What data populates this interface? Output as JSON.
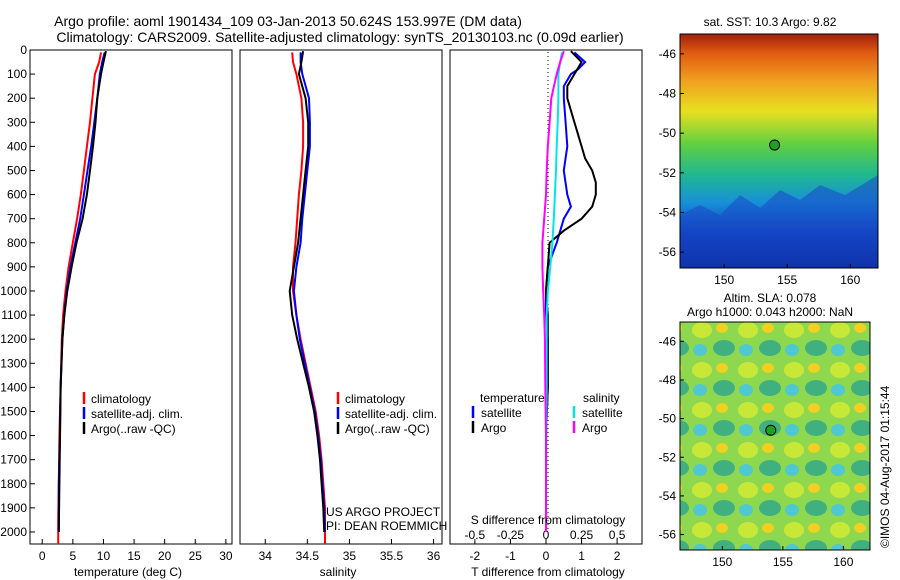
{
  "figure": {
    "title_line1": "Argo profile: aoml 1901434_109 03-Jan-2013 50.624S 153.997E (DM data)",
    "title_line2": "Climatology: CARS2009. Satellite-adjusted climatology: synTS_20130103.nc (0.09d earlier)",
    "credit_line1": "US ARGO PROJECT",
    "credit_line2": "PI: DEAN ROEMMICH",
    "imos_stamp": "©IMOS 04-Aug-2017 01:15:44"
  },
  "colors": {
    "climatology": "#ff0000",
    "satellite_adj": "#0000ff",
    "argo": "#000000",
    "t_satellite": "#0000ff",
    "t_argo": "#000000",
    "s_satellite": "#00e5e5",
    "s_argo": "#ff00ff"
  },
  "chart_data": [
    {
      "type": "line",
      "id": "temperature",
      "xlabel": "temperature (deg C)",
      "ylabel": "",
      "xlim": [
        -2,
        31
      ],
      "ylim": [
        2050,
        0
      ],
      "x_ticks": [
        0,
        5,
        10,
        15,
        20,
        25,
        30
      ],
      "y_ticks": [
        0,
        100,
        200,
        300,
        400,
        500,
        600,
        700,
        800,
        900,
        1000,
        1100,
        1200,
        1300,
        1400,
        1500,
        1600,
        1700,
        1800,
        1900,
        2000
      ],
      "legend": [
        "climatology",
        "satellite-adj. clim.",
        "Argo(..raw -QC)"
      ],
      "legend_position": "lower-center",
      "series": [
        {
          "name": "climatology",
          "color_key": "climatology",
          "points": [
            [
              9.6,
              10
            ],
            [
              9.3,
              50
            ],
            [
              8.6,
              100
            ],
            [
              8.2,
              200
            ],
            [
              7.8,
              300
            ],
            [
              7.3,
              400
            ],
            [
              6.8,
              500
            ],
            [
              6.3,
              600
            ],
            [
              5.7,
              700
            ],
            [
              5.0,
              800
            ],
            [
              4.3,
              900
            ],
            [
              3.8,
              1000
            ],
            [
              3.4,
              1100
            ],
            [
              3.2,
              1200
            ],
            [
              3.0,
              1400
            ],
            [
              2.8,
              1600
            ],
            [
              2.7,
              1800
            ],
            [
              2.6,
              1950
            ],
            [
              2.6,
              2050
            ]
          ]
        },
        {
          "name": "satellite-adj. clim.",
          "color_key": "satellite_adj",
          "points": [
            [
              10.2,
              10
            ],
            [
              9.8,
              50
            ],
            [
              9.4,
              100
            ],
            [
              9.0,
              200
            ],
            [
              8.5,
              300
            ],
            [
              8.0,
              400
            ],
            [
              7.4,
              500
            ],
            [
              6.8,
              600
            ],
            [
              6.2,
              700
            ],
            [
              5.4,
              800
            ],
            [
              4.6,
              900
            ],
            [
              4.0,
              1000
            ],
            [
              3.6,
              1100
            ],
            [
              3.3,
              1200
            ],
            [
              3.0,
              1400
            ],
            [
              2.9,
              1600
            ],
            [
              2.7,
              1800
            ],
            [
              2.7,
              2000
            ]
          ]
        },
        {
          "name": "Argo(..raw -QC)",
          "color_key": "argo",
          "points": [
            [
              10.4,
              5
            ],
            [
              10.0,
              50
            ],
            [
              9.6,
              100
            ],
            [
              9.0,
              200
            ],
            [
              8.7,
              300
            ],
            [
              8.3,
              400
            ],
            [
              7.8,
              500
            ],
            [
              7.3,
              600
            ],
            [
              6.6,
              700
            ],
            [
              5.6,
              800
            ],
            [
              4.8,
              900
            ],
            [
              4.1,
              1000
            ],
            [
              3.6,
              1100
            ],
            [
              3.3,
              1200
            ],
            [
              3.0,
              1400
            ],
            [
              2.9,
              1600
            ],
            [
              2.8,
              1800
            ],
            [
              2.7,
              2000
            ]
          ]
        }
      ]
    },
    {
      "type": "line",
      "id": "salinity",
      "xlabel": "salinity",
      "ylabel": "",
      "xlim": [
        33.7,
        36.1
      ],
      "ylim": [
        2050,
        0
      ],
      "x_ticks": [
        34,
        34.5,
        35,
        35.5,
        36
      ],
      "legend": [
        "climatology",
        "satellite-adj. clim.",
        "Argo(..raw -QC)"
      ],
      "legend_position": "lower-center",
      "series": [
        {
          "name": "climatology",
          "color_key": "climatology",
          "points": [
            [
              34.32,
              10
            ],
            [
              34.33,
              50
            ],
            [
              34.37,
              100
            ],
            [
              34.43,
              200
            ],
            [
              34.45,
              300
            ],
            [
              34.45,
              400
            ],
            [
              34.43,
              500
            ],
            [
              34.4,
              600
            ],
            [
              34.38,
              700
            ],
            [
              34.36,
              800
            ],
            [
              34.33,
              900
            ],
            [
              34.33,
              1000
            ],
            [
              34.37,
              1100
            ],
            [
              34.42,
              1200
            ],
            [
              34.48,
              1300
            ],
            [
              34.54,
              1400
            ],
            [
              34.6,
              1500
            ],
            [
              34.64,
              1600
            ],
            [
              34.67,
              1700
            ],
            [
              34.69,
              1800
            ],
            [
              34.71,
              1900
            ],
            [
              34.71,
              2000
            ],
            [
              34.71,
              2050
            ]
          ]
        },
        {
          "name": "satellite-adj. clim.",
          "color_key": "satellite_adj",
          "points": [
            [
              34.42,
              10
            ],
            [
              34.42,
              50
            ],
            [
              34.44,
              100
            ],
            [
              34.52,
              200
            ],
            [
              34.53,
              300
            ],
            [
              34.53,
              400
            ],
            [
              34.5,
              500
            ],
            [
              34.47,
              600
            ],
            [
              34.44,
              700
            ],
            [
              34.42,
              800
            ],
            [
              34.37,
              900
            ],
            [
              34.34,
              1000
            ],
            [
              34.37,
              1100
            ],
            [
              34.41,
              1200
            ],
            [
              34.47,
              1300
            ],
            [
              34.53,
              1400
            ],
            [
              34.59,
              1500
            ],
            [
              34.63,
              1600
            ],
            [
              34.66,
              1700
            ],
            [
              34.68,
              1800
            ],
            [
              34.7,
              1900
            ],
            [
              34.71,
              2000
            ]
          ]
        },
        {
          "name": "Argo(..raw -QC)",
          "color_key": "argo",
          "points": [
            [
              34.45,
              5
            ],
            [
              34.43,
              50
            ],
            [
              34.4,
              100
            ],
            [
              34.48,
              200
            ],
            [
              34.51,
              300
            ],
            [
              34.51,
              400
            ],
            [
              34.48,
              500
            ],
            [
              34.45,
              600
            ],
            [
              34.42,
              700
            ],
            [
              34.39,
              800
            ],
            [
              34.34,
              900
            ],
            [
              34.29,
              1000
            ],
            [
              34.32,
              1100
            ],
            [
              34.38,
              1200
            ],
            [
              34.45,
              1300
            ],
            [
              34.52,
              1400
            ],
            [
              34.58,
              1500
            ],
            [
              34.62,
              1600
            ],
            [
              34.65,
              1700
            ],
            [
              34.67,
              1800
            ],
            [
              34.69,
              1900
            ],
            [
              34.7,
              2000
            ]
          ]
        }
      ]
    },
    {
      "type": "line",
      "id": "differences",
      "xlabel_top": "S difference from climatology",
      "xlabel": "T difference from climatology",
      "xlim": [
        -2.7,
        2.7
      ],
      "ylim": [
        2050,
        0
      ],
      "x_ticks_bottom": [
        "-2",
        "-1",
        "0",
        "1",
        "2"
      ],
      "x_ticks_top": [
        "-0.5",
        "-0.25",
        "0",
        "0.25",
        "0.5"
      ],
      "legend_titles": [
        "temperature",
        "salinity"
      ],
      "legend": [
        "satellite",
        "Argo",
        "satellite",
        "Argo"
      ],
      "legend_position": "lower-center",
      "series": [
        {
          "name": "T satellite",
          "color_key": "t_satellite",
          "points": [
            [
              0.8,
              10
            ],
            [
              1.1,
              50
            ],
            [
              0.9,
              80
            ],
            [
              0.7,
              100
            ],
            [
              0.5,
              150
            ],
            [
              0.5,
              200
            ],
            [
              0.55,
              300
            ],
            [
              0.6,
              400
            ],
            [
              0.5,
              500
            ],
            [
              0.6,
              600
            ],
            [
              0.7,
              650
            ],
            [
              0.5,
              700
            ],
            [
              0.3,
              800
            ],
            [
              0.05,
              900
            ],
            [
              0.0,
              1000
            ],
            [
              0.0,
              1100
            ],
            [
              0.05,
              1200
            ],
            [
              0.05,
              1400
            ],
            [
              0.0,
              1600
            ],
            [
              0.0,
              1800
            ],
            [
              0.0,
              2000
            ]
          ]
        },
        {
          "name": "T Argo",
          "color_key": "t_argo",
          "points": [
            [
              0.7,
              5
            ],
            [
              1.0,
              50
            ],
            [
              0.8,
              100
            ],
            [
              0.6,
              150
            ],
            [
              0.6,
              200
            ],
            [
              0.8,
              300
            ],
            [
              0.9,
              350
            ],
            [
              1.0,
              400
            ],
            [
              1.1,
              450
            ],
            [
              1.3,
              500
            ],
            [
              1.4,
              550
            ],
            [
              1.4,
              600
            ],
            [
              1.3,
              650
            ],
            [
              1.0,
              700
            ],
            [
              0.5,
              750
            ],
            [
              0.1,
              800
            ],
            [
              0.05,
              900
            ],
            [
              0.0,
              1000
            ],
            [
              0.05,
              1100
            ],
            [
              0.05,
              1200
            ],
            [
              0.05,
              1400
            ],
            [
              0.0,
              1600
            ],
            [
              0.0,
              1800
            ],
            [
              0.0,
              2000
            ]
          ]
        },
        {
          "name": "S satellite",
          "color_key": "s_satellite",
          "points": [
            [
              0.45,
              10
            ],
            [
              0.4,
              50
            ],
            [
              0.35,
              100
            ],
            [
              0.35,
              200
            ],
            [
              0.33,
              300
            ],
            [
              0.3,
              400
            ],
            [
              0.28,
              500
            ],
            [
              0.25,
              600
            ],
            [
              0.22,
              700
            ],
            [
              0.18,
              800
            ],
            [
              0.12,
              900
            ],
            [
              0.05,
              1000
            ],
            [
              0.02,
              1100
            ],
            [
              0.02,
              1200
            ],
            [
              0.02,
              1400
            ],
            [
              0.01,
              1600
            ],
            [
              0.0,
              1800
            ],
            [
              0.0,
              2000
            ]
          ]
        },
        {
          "name": "S Argo",
          "color_key": "s_argo",
          "points": [
            [
              0.5,
              5
            ],
            [
              0.4,
              50
            ],
            [
              0.3,
              100
            ],
            [
              0.15,
              200
            ],
            [
              0.1,
              300
            ],
            [
              0.05,
              400
            ],
            [
              0.02,
              500
            ],
            [
              0.0,
              600
            ],
            [
              -0.05,
              700
            ],
            [
              -0.1,
              800
            ],
            [
              -0.1,
              900
            ],
            [
              -0.08,
              1000
            ],
            [
              -0.05,
              1100
            ],
            [
              -0.03,
              1200
            ],
            [
              -0.02,
              1400
            ],
            [
              0.0,
              1600
            ],
            [
              0.0,
              1800
            ],
            [
              0.0,
              2000
            ]
          ]
        }
      ]
    },
    {
      "type": "heatmap",
      "id": "sst_map",
      "title": "sat. SST: 10.3  Argo: 9.82",
      "xlim": [
        146.5,
        162.2
      ],
      "ylim": [
        -56.8,
        -45
      ],
      "x_ticks": [
        150,
        155,
        160
      ],
      "y_ticks": [
        -46,
        -48,
        -50,
        -52,
        -54,
        -56
      ],
      "marker": {
        "lon": 154.0,
        "lat": -50.6
      }
    },
    {
      "type": "heatmap",
      "id": "sla_map",
      "title_line1": "Altim. SLA: 0.078",
      "title_line2": "Argo h1000: 0.043 h2000: NaN",
      "xlim": [
        146.5,
        162.2
      ],
      "ylim": [
        -56.8,
        -45
      ],
      "x_ticks": [
        150,
        155,
        160
      ],
      "y_ticks": [
        -46,
        -48,
        -50,
        -52,
        -54,
        -56
      ],
      "marker": {
        "lon": 154.0,
        "lat": -50.6
      }
    }
  ]
}
